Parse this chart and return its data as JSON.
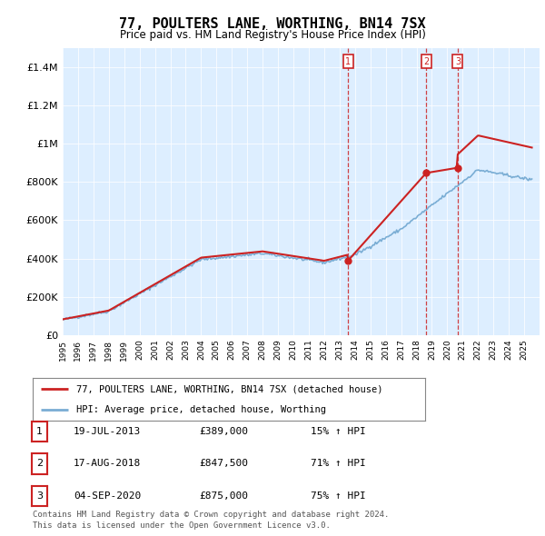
{
  "title": "77, POULTERS LANE, WORTHING, BN14 7SX",
  "subtitle": "Price paid vs. HM Land Registry's House Price Index (HPI)",
  "hpi_color": "#7aadd4",
  "price_color": "#cc2222",
  "background_color": "#ffffff",
  "plot_bg_color": "#ddeeff",
  "ylim": [
    0,
    1500000
  ],
  "yticks": [
    0,
    200000,
    400000,
    600000,
    800000,
    1000000,
    1200000,
    1400000
  ],
  "ylabel_map": {
    "0": "£0",
    "200000": "£200K",
    "400000": "£400K",
    "600000": "£600K",
    "800000": "£800K",
    "1000000": "£1M",
    "1200000": "£1.2M",
    "1400000": "£1.4M"
  },
  "trans_dates": [
    2013.55,
    2018.63,
    2020.68
  ],
  "trans_prices": [
    389000,
    847500,
    875000
  ],
  "trans_labels": [
    "1",
    "2",
    "3"
  ],
  "legend_property_label": "77, POULTERS LANE, WORTHING, BN14 7SX (detached house)",
  "legend_hpi_label": "HPI: Average price, detached house, Worthing",
  "footer": "Contains HM Land Registry data © Crown copyright and database right 2024.\nThis data is licensed under the Open Government Licence v3.0.",
  "table_rows": [
    {
      "num": "1",
      "date": "19-JUL-2013",
      "price": "£389,000",
      "pct": "15% ↑ HPI"
    },
    {
      "num": "2",
      "date": "17-AUG-2018",
      "price": "£847,500",
      "pct": "71% ↑ HPI"
    },
    {
      "num": "3",
      "date": "04-SEP-2020",
      "price": "£875,000",
      "pct": "75% ↑ HPI"
    }
  ]
}
